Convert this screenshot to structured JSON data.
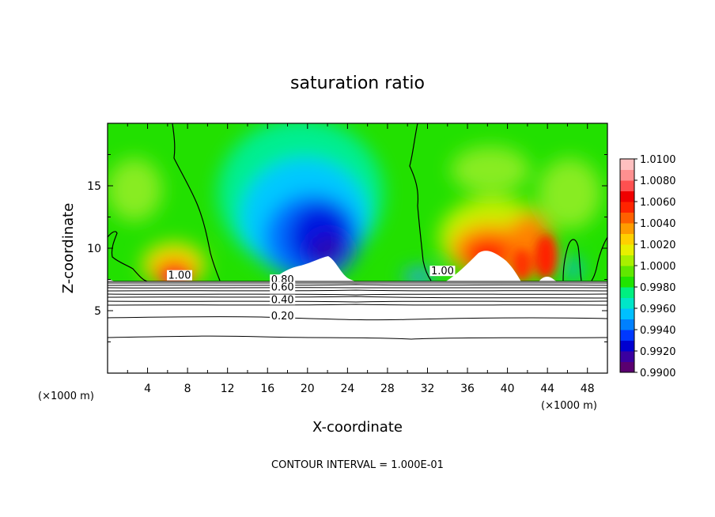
{
  "chart_data": {
    "type": "heatmap",
    "title": "saturation ratio",
    "xlabel": "X-coordinate",
    "ylabel": "Z-coordinate",
    "x_unit": "(×1000 m)",
    "z_unit": "(×1000 m)",
    "xlim": [
      0,
      50
    ],
    "ylim": [
      0,
      20
    ],
    "x_ticks": [
      4,
      8,
      12,
      16,
      20,
      24,
      28,
      32,
      36,
      40,
      44,
      48
    ],
    "y_ticks": [
      5,
      10,
      15
    ],
    "colorbar": {
      "min": 0.99,
      "max": 1.01,
      "labels": [
        "1.0100",
        "1.0080",
        "1.0060",
        "1.0040",
        "1.0020",
        "1.0000",
        "0.9980",
        "0.9960",
        "0.9940",
        "0.9920",
        "0.9900"
      ],
      "colors": [
        "#5a0070",
        "#3a00a0",
        "#0000d0",
        "#0038ff",
        "#0080ff",
        "#00c0ff",
        "#00e6c8",
        "#00f080",
        "#20e400",
        "#60e800",
        "#a8f000",
        "#e8f000",
        "#ffd000",
        "#ff9c00",
        "#ff6000",
        "#ff2400",
        "#f00000",
        "#ff5050",
        "#ff9090",
        "#ffc0c0"
      ]
    },
    "contour_labels": [
      {
        "text": "1.00",
        "x": 7.2,
        "z": 7.55
      },
      {
        "text": "1.00",
        "x": 33.5,
        "z": 7.9
      },
      {
        "text": "0.80",
        "x": 17.5,
        "z": 7.2
      },
      {
        "text": "0.60",
        "x": 17.5,
        "z": 6.6
      },
      {
        "text": "0.40",
        "x": 17.5,
        "z": 5.6
      },
      {
        "text": "0.20",
        "x": 17.5,
        "z": 4.3
      }
    ],
    "contour_interval": "CONTOUR INTERVAL = 1.000E-01"
  }
}
